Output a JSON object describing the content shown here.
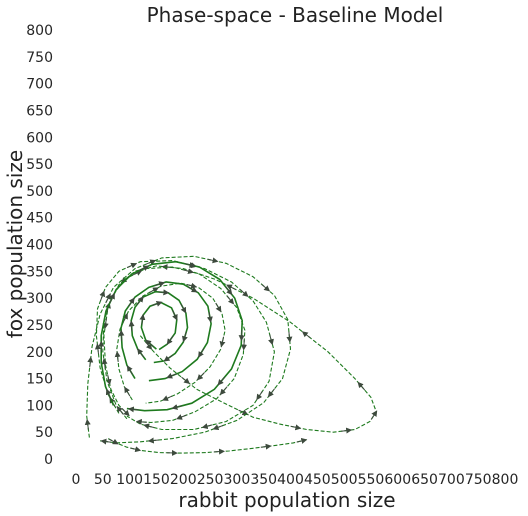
{
  "chart_data": {
    "type": "line",
    "title": "Phase-space - Baseline Model",
    "xlabel": "rabbit population size",
    "ylabel": "fox population size",
    "xlim": [
      0,
      800
    ],
    "ylim": [
      0,
      800
    ],
    "xticks": [
      0,
      50,
      100,
      150,
      200,
      250,
      300,
      350,
      400,
      450,
      500,
      550,
      600,
      650,
      700,
      750,
      800
    ],
    "yticks": [
      0,
      50,
      100,
      150,
      200,
      250,
      300,
      350,
      400,
      450,
      500,
      550,
      600,
      650,
      700,
      750,
      800
    ],
    "grid": false,
    "line_color": "#1e7a1e",
    "arrow_color": "#3d4a3d",
    "series": [
      {
        "style": "dashed",
        "x": [
          120,
          145,
          175,
          225,
          285,
          330,
          380,
          430,
          480,
          520,
          548,
          560,
          550,
          520,
          470,
          400,
          330,
          260,
          200,
          150,
          110,
          80,
          60,
          52,
          55,
          65,
          80,
          100
        ],
        "y": [
          230,
          200,
          170,
          130,
          100,
          78,
          65,
          55,
          50,
          55,
          70,
          88,
          115,
          150,
          200,
          255,
          300,
          335,
          355,
          360,
          350,
          325,
          285,
          230,
          175,
          130,
          100,
          80
        ]
      },
      {
        "style": "dashed",
        "x": [
          80,
          60,
          45,
          38,
          40,
          55,
          80,
          120,
          180,
          240,
          290,
          330,
          355,
          370,
          360,
          330,
          280,
          220,
          160,
          120,
          95
        ],
        "y": [
          85,
          120,
          170,
          230,
          280,
          320,
          350,
          368,
          370,
          355,
          330,
          295,
          255,
          200,
          145,
          100,
          70,
          55,
          55,
          65,
          80
        ]
      },
      {
        "style": "dashed",
        "x": [
          95,
          75,
          58,
          50,
          52,
          65,
          90,
          130,
          180,
          230,
          270,
          300,
          315,
          312,
          295,
          262,
          222,
          180,
          140,
          112
        ],
        "y": [
          75,
          100,
          145,
          200,
          255,
          300,
          335,
          355,
          358,
          345,
          318,
          282,
          240,
          195,
          150,
          112,
          88,
          72,
          68,
          70
        ]
      },
      {
        "style": "dashed",
        "x": [
          105,
          90,
          80,
          76,
          82,
          98,
          125,
          158,
          195,
          228,
          255,
          272,
          278,
          270,
          250,
          222,
          190,
          158,
          130
        ],
        "y": [
          110,
          135,
          168,
          205,
          242,
          276,
          304,
          322,
          328,
          320,
          300,
          272,
          240,
          205,
          172,
          143,
          122,
          108,
          104
        ]
      },
      {
        "style": "dashed",
        "x": [
          25,
          20,
          22,
          30,
          45,
          70,
          110,
          160,
          220,
          280,
          330,
          370,
          395,
          400,
          385,
          350,
          300,
          240,
          180,
          120,
          75,
          45
        ],
        "y": [
          40,
          80,
          140,
          210,
          270,
          320,
          355,
          375,
          378,
          365,
          340,
          305,
          260,
          205,
          150,
          105,
          72,
          50,
          38,
          32,
          30,
          34
        ]
      },
      {
        "style": "dashed",
        "x": [
          60,
          75,
          95,
          120,
          155,
          195,
          240,
          285,
          330,
          370,
          405,
          430
        ],
        "y": [
          38,
          30,
          22,
          16,
          12,
          11,
          12,
          15,
          20,
          25,
          30,
          36
        ]
      },
      {
        "style": "solid",
        "x": [
          130,
          115,
          105,
          103,
          110,
          125,
          148,
          172,
          192,
          205,
          208,
          200,
          185,
          165,
          145
        ],
        "y": [
          185,
          205,
          230,
          258,
          283,
          302,
          312,
          310,
          296,
          272,
          245,
          218,
          197,
          183,
          180
        ]
      },
      {
        "style": "solid",
        "x": [
          150,
          130,
          122,
          125,
          138,
          158,
          178,
          188,
          185,
          170,
          155
        ],
        "y": [
          205,
          222,
          245,
          268,
          285,
          292,
          282,
          260,
          235,
          214,
          204
        ]
      },
      {
        "style": "solid",
        "x": [
          110,
          95,
          86,
          84,
          92,
          110,
          136,
          168,
          200,
          228,
          246,
          252,
          245,
          226,
          198,
          166,
          136
        ],
        "y": [
          150,
          175,
          208,
          244,
          276,
          302,
          320,
          330,
          326,
          310,
          285,
          252,
          217,
          186,
          163,
          150,
          146
        ]
      },
      {
        "style": "solid",
        "x": [
          70,
          55,
          47,
          47,
          56,
          75,
          104,
          142,
          186,
          230,
          268,
          296,
          310,
          308,
          290,
          258,
          216,
          170,
          128,
          95
        ],
        "y": [
          100,
          135,
          180,
          230,
          276,
          316,
          345,
          363,
          368,
          358,
          335,
          300,
          258,
          212,
          168,
          130,
          104,
          92,
          90,
          94
        ]
      }
    ]
  }
}
